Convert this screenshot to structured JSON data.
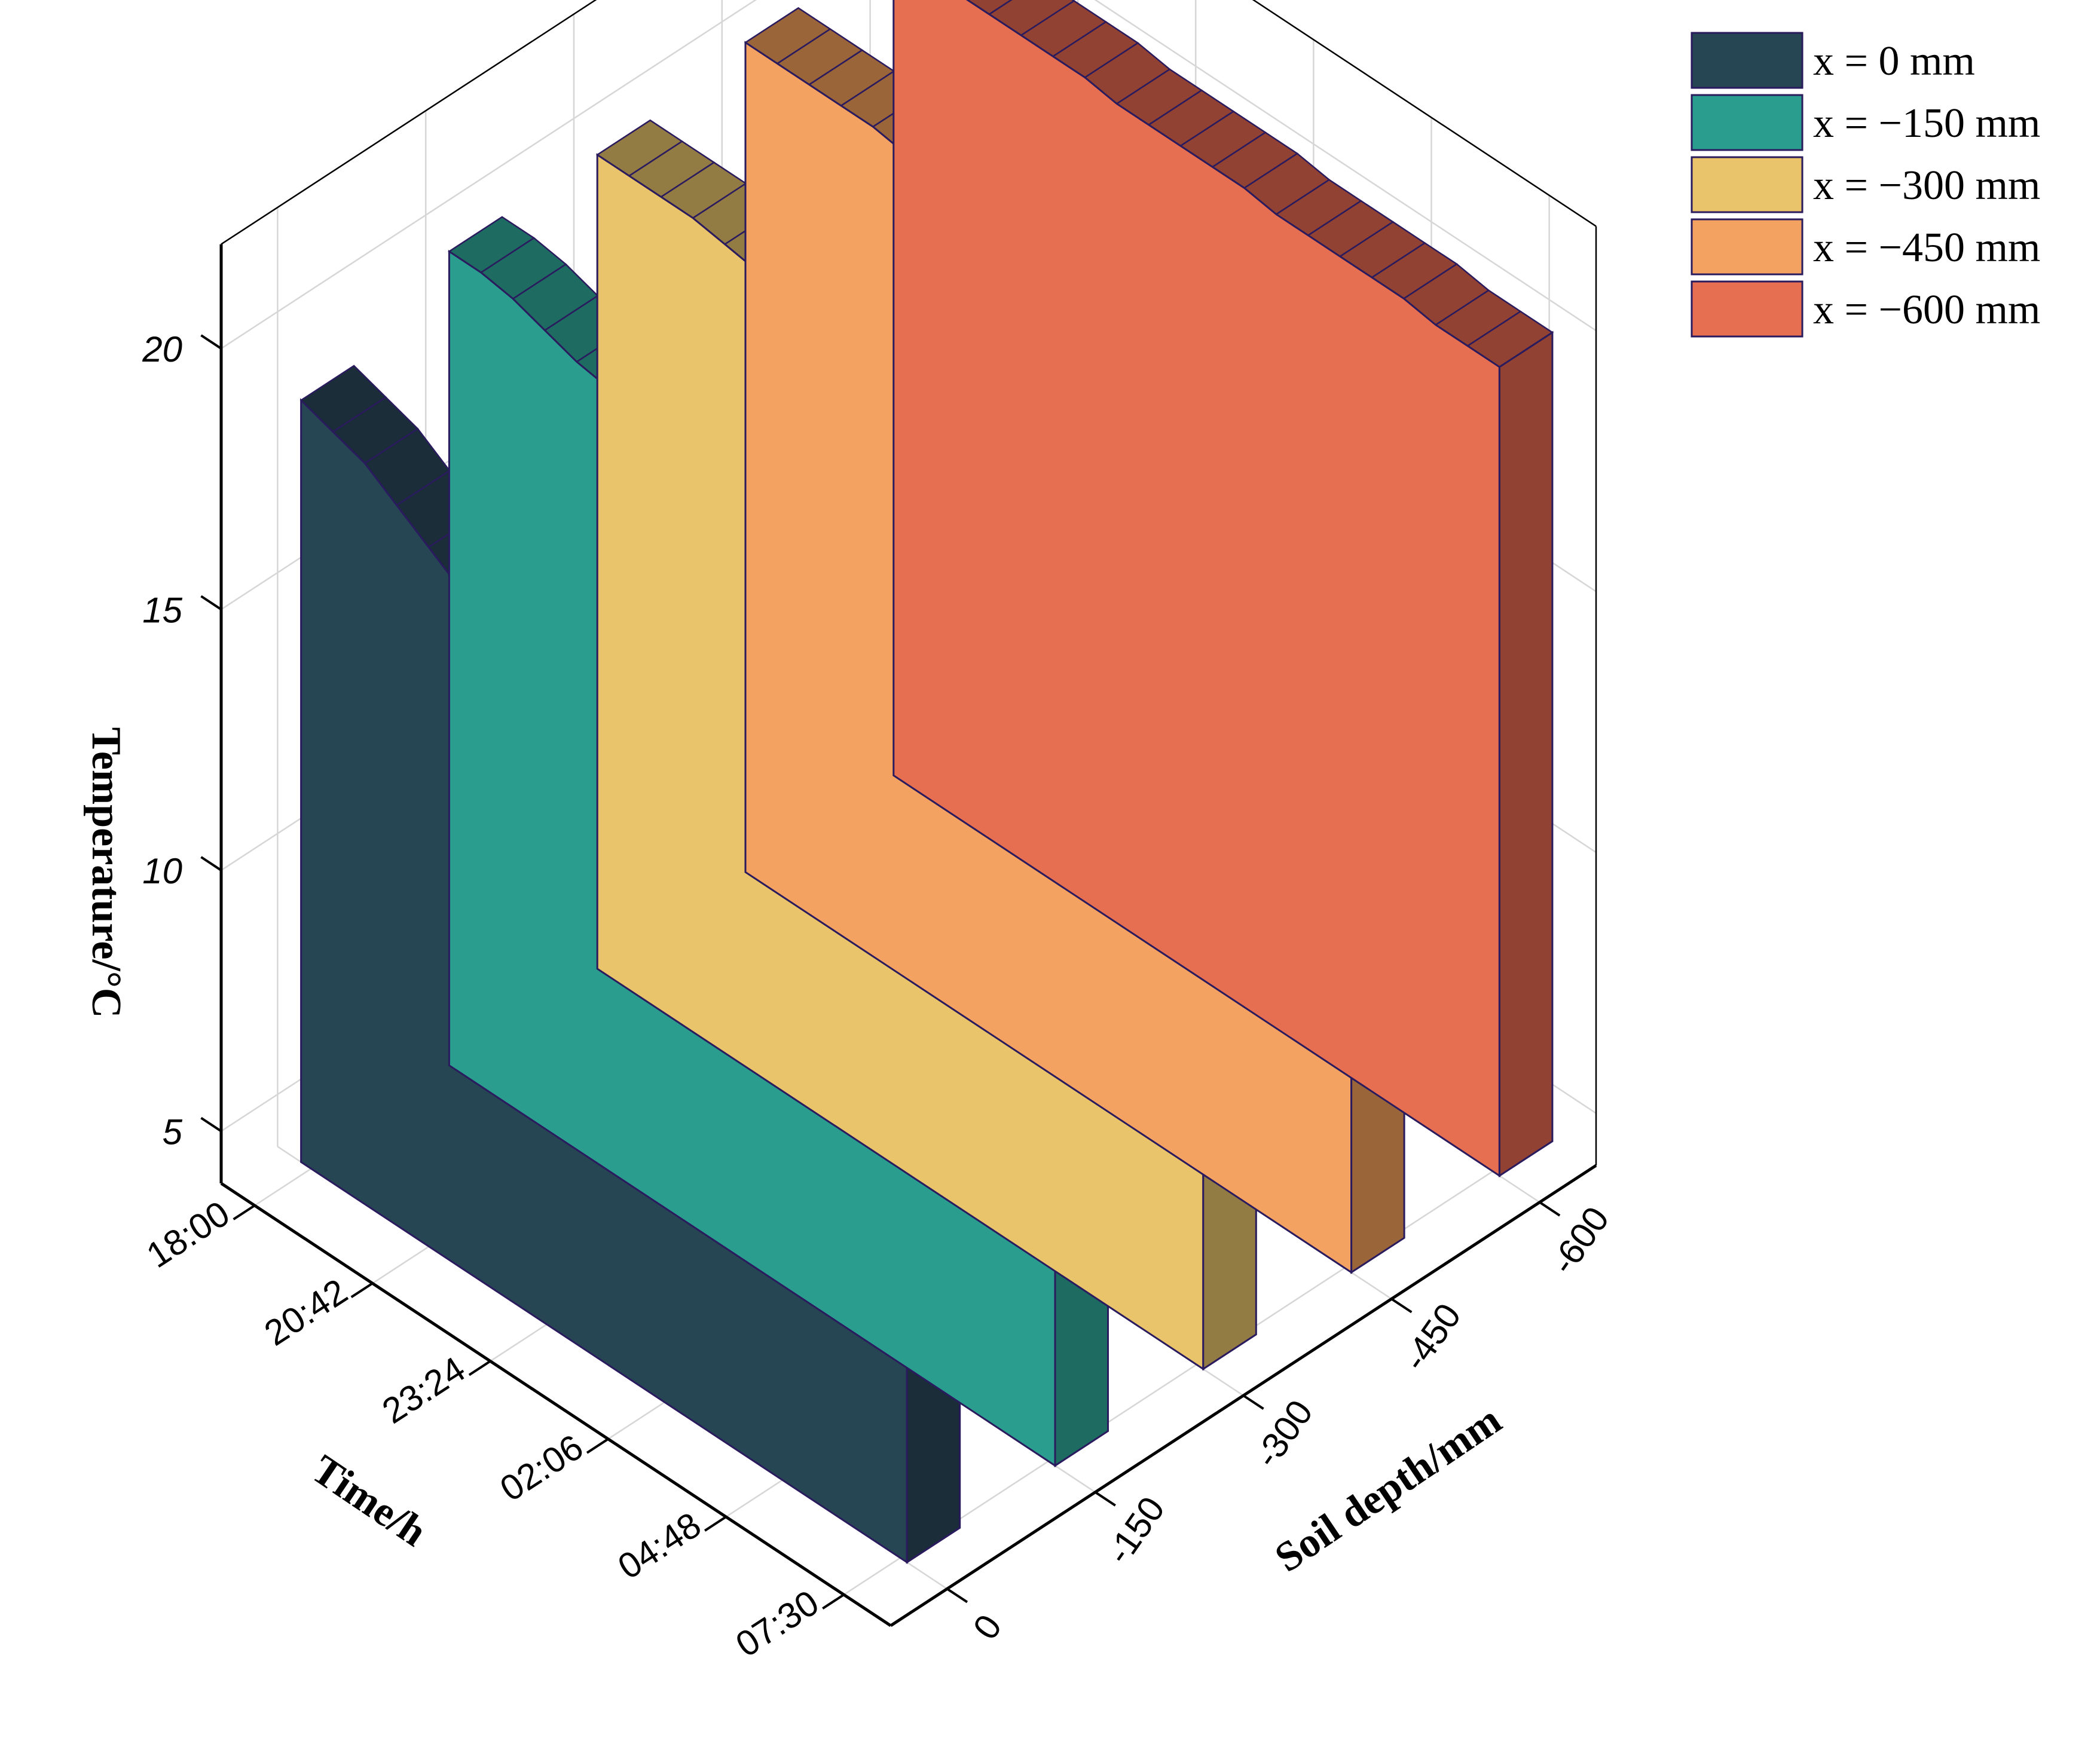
{
  "chart_data": {
    "type": "3d-wall",
    "xlabel": "Time/h",
    "ylabel": "Soil depth/mm",
    "zlabel": "Temperature/°C",
    "x_ticks": [
      "18:00",
      "20:42",
      "23:24",
      "02:06",
      "04:48",
      "07:30"
    ],
    "y_ticks": [
      "0",
      "-150",
      "-300",
      "-450",
      "-600"
    ],
    "z_ticks": [
      "5",
      "10",
      "15",
      "20"
    ],
    "zlim": [
      4,
      22
    ],
    "legend_position": "top-right",
    "series": [
      {
        "name": "x = 0 mm",
        "depth": 0,
        "color": "#264653",
        "side_color": "#1a2d39",
        "values": [
          18.6,
          18.4,
          18.2,
          17.8,
          17.4,
          17.0,
          16.6,
          16.2,
          15.8,
          15.5,
          15.2,
          14.9,
          14.6,
          14.4,
          14.2,
          14.0,
          13.8,
          13.6,
          13.5,
          13.4
        ]
      },
      {
        "name": "x = −150 mm",
        "depth": -150,
        "color": "#2a9d8f",
        "side_color": "#1e6b62",
        "values": [
          19.6,
          19.6,
          19.5,
          19.3,
          19.1,
          19.0,
          18.8,
          18.6,
          18.4,
          18.2,
          17.9,
          17.6,
          17.3,
          17.0,
          16.7,
          16.5,
          16.3,
          16.1,
          15.9,
          15.8
        ]
      },
      {
        "name": "x = −300 mm",
        "depth": -300,
        "color": "#e9c46a",
        "side_color": "#937b44",
        "values": [
          19.6,
          19.6,
          19.6,
          19.6,
          19.5,
          19.4,
          19.3,
          19.2,
          19.1,
          19.0,
          18.8,
          18.7,
          18.5,
          18.3,
          18.1,
          17.9,
          17.8,
          17.6,
          17.4,
          17.3
        ]
      },
      {
        "name": "x = −450 mm",
        "depth": -450,
        "color": "#f4a261",
        "side_color": "#9b653a",
        "values": [
          19.9,
          19.9,
          19.9,
          19.9,
          19.9,
          19.8,
          19.8,
          19.8,
          19.7,
          19.7,
          19.6,
          19.6,
          19.5,
          19.4,
          19.4,
          19.3,
          19.2,
          19.1,
          19.1,
          19.0
        ]
      },
      {
        "name": "x = −600 mm",
        "depth": -600,
        "color": "#e76f51",
        "side_color": "#924232",
        "values": [
          19.8,
          19.8,
          19.8,
          19.8,
          19.8,
          19.8,
          19.8,
          19.7,
          19.7,
          19.7,
          19.7,
          19.7,
          19.6,
          19.6,
          19.6,
          19.6,
          19.6,
          19.5,
          19.5,
          19.5
        ]
      }
    ]
  }
}
